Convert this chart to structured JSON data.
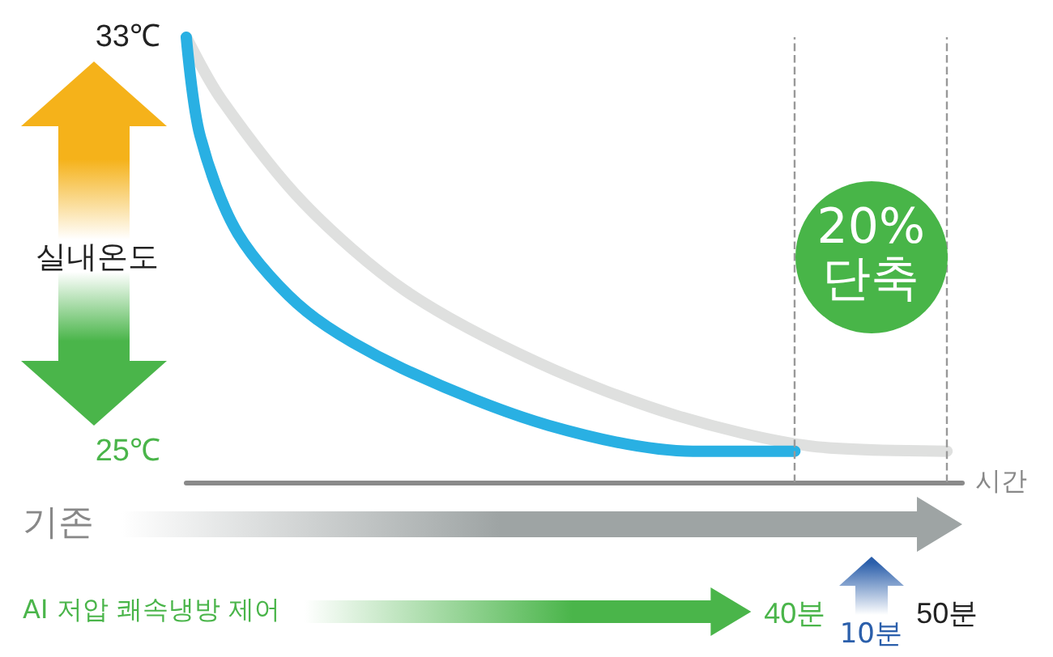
{
  "chart_data": {
    "type": "line",
    "xlabel": "시간",
    "ylabel": "실내온도",
    "xlim": [
      0,
      51
    ],
    "xticks": [
      {
        "value": 40,
        "label": "40분"
      },
      {
        "value": 50,
        "label": "50분"
      }
    ],
    "ylim": [
      24.4,
      33
    ],
    "yticks": [
      {
        "value": 33,
        "label": "33℃"
      },
      {
        "value": 25,
        "label": "25℃"
      }
    ],
    "series": [
      {
        "color": "#dfe0df",
        "x": [
          0,
          2.3,
          7.7,
          14.4,
          23.2,
          32.1,
          41,
          50
        ],
        "values": [
          33,
          31.8,
          29.8,
          28.1,
          26.7,
          25.7,
          25.1,
          25.0
        ]
      },
      {
        "color": "#29b0e3",
        "x": [
          0,
          0.9,
          3.4,
          7.9,
          14.2,
          23.8,
          33.3,
          40
        ],
        "values": [
          33,
          31.1,
          29.2,
          27.7,
          26.6,
          25.5,
          25.0,
          25.0
        ]
      }
    ],
    "ref_lines": [
      {
        "axis": "x",
        "value": 40,
        "line_style": "dashed",
        "color": "#999999"
      },
      {
        "axis": "x",
        "value": 50,
        "line_style": "dashed",
        "color": "#999999"
      }
    ],
    "annotations": [
      "20%\n단축",
      "기존",
      "AI 저압 쾌속냉방 제어",
      "10분"
    ],
    "line_style": "solid",
    "grid": false
  }
}
